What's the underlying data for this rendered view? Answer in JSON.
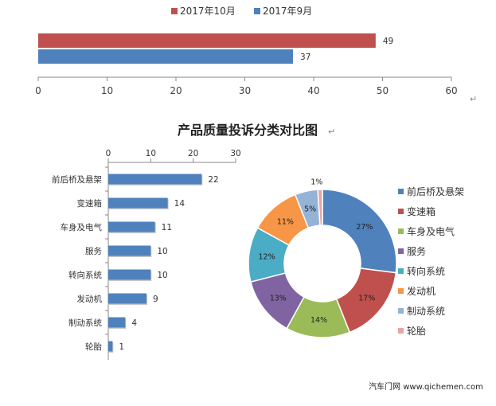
{
  "chart_data": [
    {
      "type": "bar",
      "orientation": "horizontal",
      "series": [
        {
          "name": "2017年10月",
          "values": [
            49
          ],
          "color": "#c0504d"
        },
        {
          "name": "2017年9月",
          "values": [
            37
          ],
          "color": "#4f81bd"
        }
      ],
      "xlim": [
        0,
        60
      ],
      "xticks": [
        0,
        10,
        20,
        30,
        40,
        50,
        60
      ],
      "legend_position": "top",
      "grid": false
    },
    {
      "type": "bar",
      "orientation": "horizontal",
      "categories": [
        "前后桥及悬架",
        "变速箱",
        "车身及电气",
        "服务",
        "转向系统",
        "发动机",
        "制动系统",
        "轮胎"
      ],
      "values": [
        22,
        14,
        11,
        10,
        10,
        9,
        4,
        1
      ],
      "xlim": [
        0,
        30
      ],
      "xticks": [
        0,
        10,
        20,
        30
      ],
      "axis_position": "top",
      "color": "#4f81bd",
      "grid": false
    },
    {
      "type": "pie",
      "style": "donut",
      "categories": [
        "前后桥及悬架",
        "变速箱",
        "车身及电气",
        "服务",
        "转向系统",
        "发动机",
        "制动系统",
        "轮胎"
      ],
      "values": [
        27,
        17,
        14,
        13,
        12,
        11,
        5,
        1
      ],
      "labels": [
        "27%",
        "17%",
        "14%",
        "13%",
        "12%",
        "11%",
        "5%",
        "1%"
      ],
      "colors": [
        "#4f81bd",
        "#c0504d",
        "#9bbb59",
        "#8064a2",
        "#4bacc6",
        "#f79646",
        "#95b3d7",
        "#e6a5a4"
      ],
      "legend_position": "right"
    }
  ],
  "title": "产品质量投诉分类对比图",
  "return_mark": "↵",
  "footer": "汽车门网 www.qichemen.com"
}
